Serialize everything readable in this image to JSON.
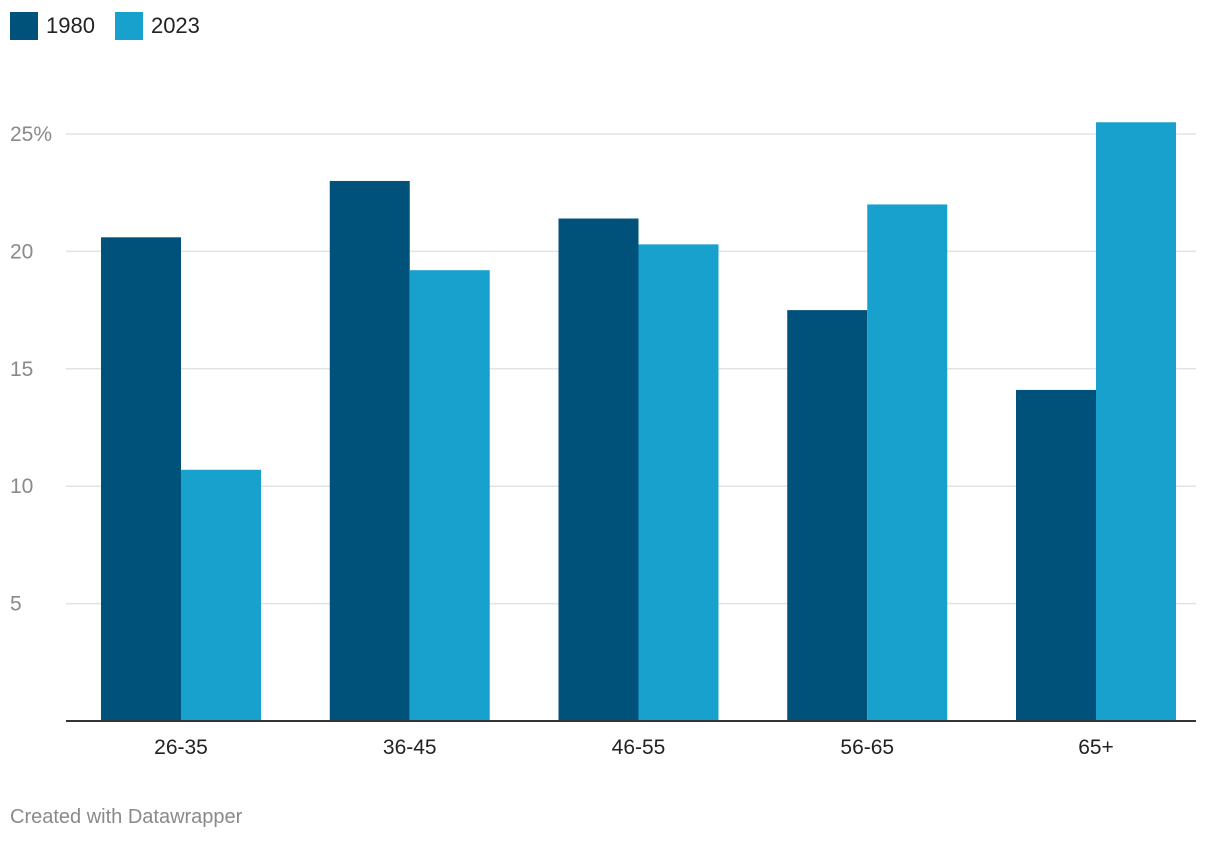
{
  "chart_data": {
    "type": "bar",
    "categories": [
      "26-35",
      "36-45",
      "46-55",
      "56-65",
      "65+"
    ],
    "series": [
      {
        "name": "1980",
        "values": [
          20.6,
          23.0,
          21.4,
          17.5,
          14.1
        ],
        "color": "#01527a"
      },
      {
        "name": "2023",
        "values": [
          10.7,
          19.2,
          20.3,
          22.0,
          25.5
        ],
        "color": "#18a1cd"
      }
    ],
    "title": "",
    "xlabel": "",
    "ylabel": "",
    "ylim": [
      0,
      25
    ],
    "yticks": [
      5,
      10,
      15,
      20,
      25
    ],
    "ytick_labels": [
      "5",
      "10",
      "15",
      "20",
      "25%"
    ],
    "grid": true,
    "legend_position": "top-left"
  },
  "footer": {
    "credit": "Created with Datawrapper"
  },
  "colors": {
    "gridline": "#e3e3e3",
    "axis": "#333333"
  }
}
